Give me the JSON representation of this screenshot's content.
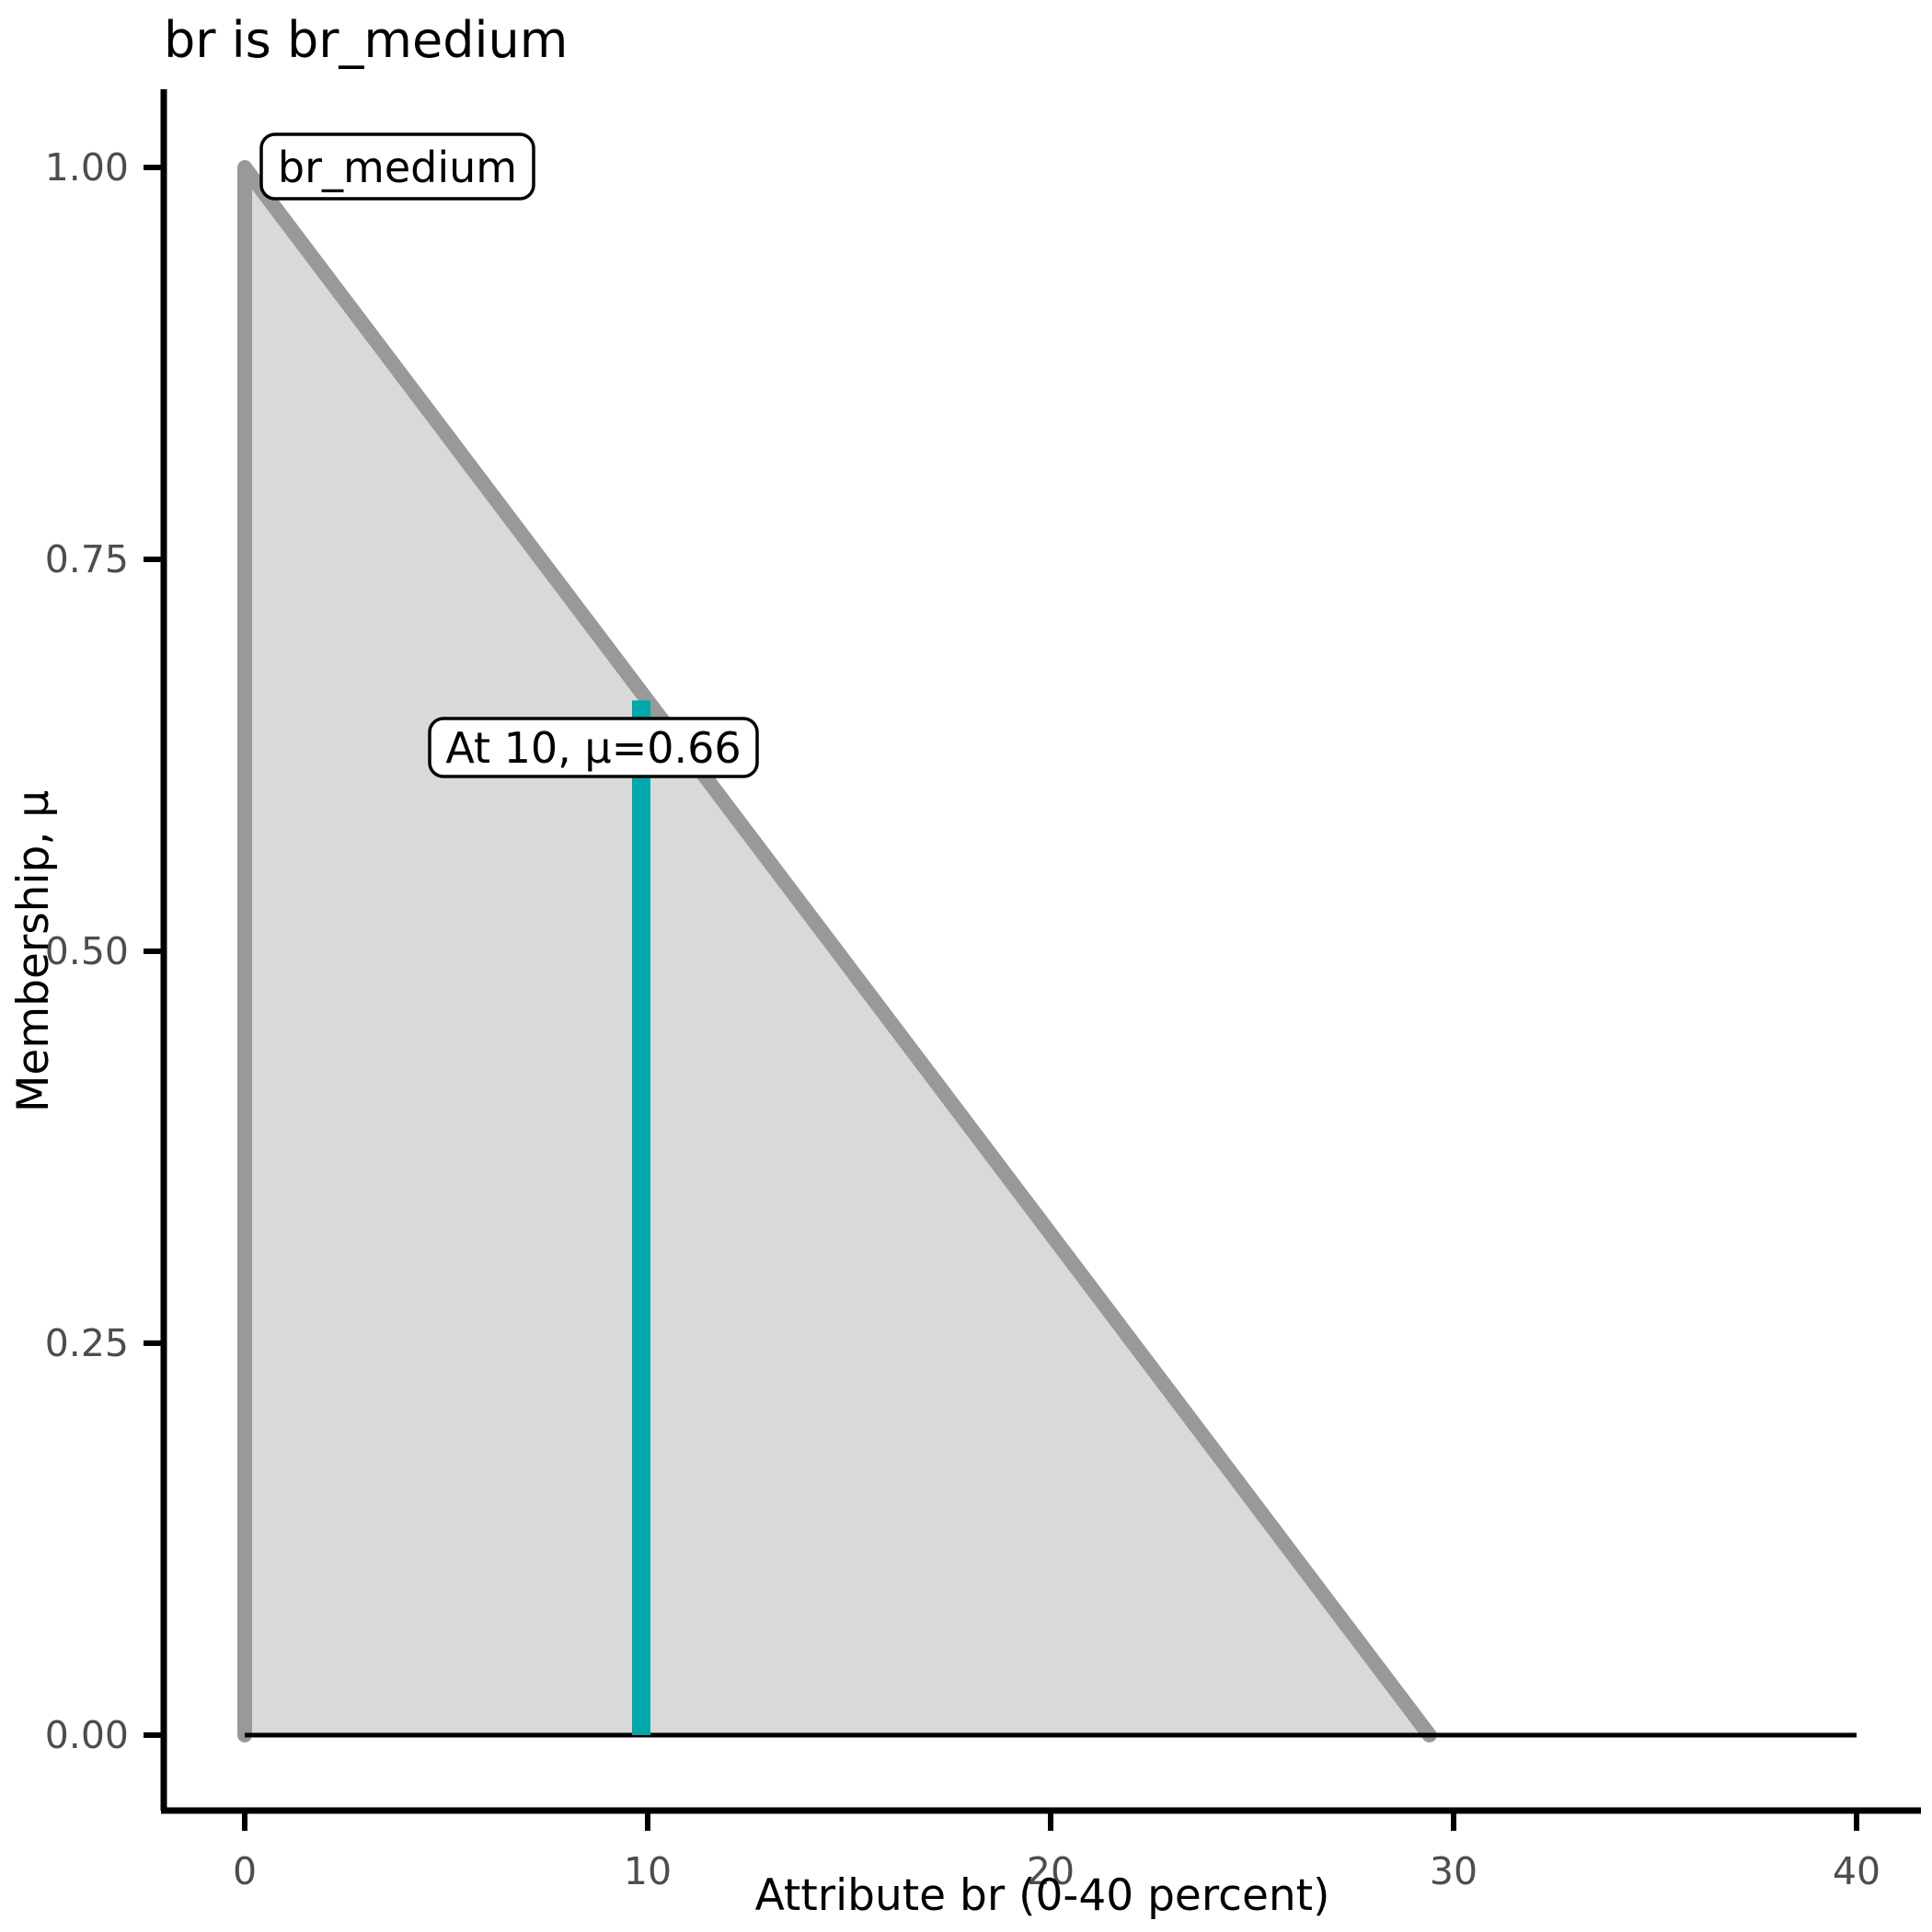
{
  "title": "br is br_medium",
  "chart_data": {
    "type": "area",
    "title": "br is br_medium",
    "xlabel": "Attribute br (0-40 percent)",
    "ylabel": "Membership, μ",
    "xlim": [
      0,
      40
    ],
    "ylim": [
      0,
      1
    ],
    "grid": false,
    "legend": "none",
    "x_ticks": [
      0,
      10,
      20,
      30,
      40
    ],
    "y_ticks": [
      0,
      0.25,
      0.5,
      0.75,
      1
    ],
    "y_tick_labels": [
      "0.00",
      "0.25",
      "0.50",
      "0.75",
      "1.00"
    ],
    "x_tick_labels": [
      "0",
      "10",
      "20",
      "30",
      "40"
    ],
    "series": [
      {
        "name": "br_medium",
        "kind": "fuzzy-membership-triangle",
        "points": [
          [
            0,
            0
          ],
          [
            0,
            1
          ],
          [
            29.4,
            0
          ],
          [
            40,
            0
          ]
        ],
        "peak_x": 0,
        "peak_mu": 1.0,
        "zero_x": 29.4,
        "fill": "#D9D9D9",
        "stroke": "#999999"
      }
    ],
    "baseline": {
      "y": 0,
      "x_start": 0,
      "x_end": 40,
      "color": "#000000"
    },
    "indicator": {
      "x": 10,
      "mu": 0.66,
      "color": "#00A8AC",
      "label": "At 10, μ=0.66"
    },
    "annotations": [
      {
        "label": "br_medium",
        "at_x": 0.4,
        "at_mu": 1.0
      },
      {
        "label": "At 10, μ=0.66",
        "at_x": 10,
        "at_mu": 0.63
      }
    ]
  },
  "colors": {
    "background": "#ffffff",
    "area_fill": "#D9D9D9",
    "area_stroke": "#999999",
    "indicator": "#00A8AC",
    "axis_line": "#000000",
    "tick_text": "#4d4d4d",
    "label_text": "#000000",
    "annotation_box_fill": "#ffffff",
    "annotation_box_border": "#000000"
  }
}
